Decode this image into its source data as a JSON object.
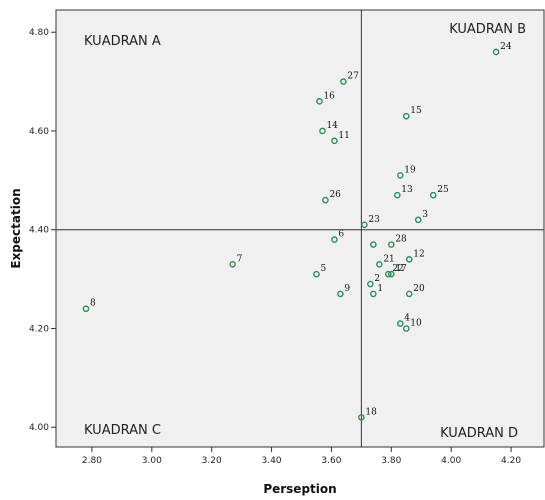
{
  "chart_data": {
    "type": "scatter",
    "title": "",
    "xlabel": "Perseption",
    "ylabel": "Expectation",
    "xlim": [
      2.68,
      4.31
    ],
    "ylim": [
      3.96,
      4.845
    ],
    "x_ticks": [
      "2.80",
      "3.00",
      "3.20",
      "3.40",
      "3.60",
      "3.80",
      "4.00",
      "4.20"
    ],
    "y_ticks": [
      "4.00",
      "4.20",
      "4.40",
      "4.60",
      "4.80"
    ],
    "x_tick_values": [
      2.8,
      3.0,
      3.2,
      3.4,
      3.6,
      3.8,
      4.0,
      4.2
    ],
    "y_tick_values": [
      4.0,
      4.2,
      4.4,
      4.6,
      4.8
    ],
    "reference_lines": {
      "x": 3.7,
      "y": 4.4
    },
    "quadrant_labels": {
      "A": "KUADRAN A",
      "B": "KUADRAN B",
      "C": "KUADRAN C",
      "D": "KUADRAN D"
    },
    "marker_color": "#2e8b57",
    "grid": false,
    "points": [
      {
        "label": "1",
        "x": 3.74,
        "y": 4.27
      },
      {
        "label": "2",
        "x": 3.73,
        "y": 4.29
      },
      {
        "label": "3",
        "x": 3.89,
        "y": 4.42
      },
      {
        "label": "4",
        "x": 3.83,
        "y": 4.21
      },
      {
        "label": "5",
        "x": 3.55,
        "y": 4.31
      },
      {
        "label": "6",
        "x": 3.61,
        "y": 4.38
      },
      {
        "label": "7",
        "x": 3.27,
        "y": 4.33
      },
      {
        "label": "8",
        "x": 2.78,
        "y": 4.24
      },
      {
        "label": "9",
        "x": 3.63,
        "y": 4.27
      },
      {
        "label": "10",
        "x": 3.85,
        "y": 4.2
      },
      {
        "label": "11",
        "x": 3.61,
        "y": 4.58
      },
      {
        "label": "12",
        "x": 3.86,
        "y": 4.34
      },
      {
        "label": "13",
        "x": 3.82,
        "y": 4.47
      },
      {
        "label": "14",
        "x": 3.57,
        "y": 4.6
      },
      {
        "label": "15",
        "x": 3.85,
        "y": 4.63
      },
      {
        "label": "16",
        "x": 3.56,
        "y": 4.66
      },
      {
        "label": "17",
        "x": 3.8,
        "y": 4.31
      },
      {
        "label": "18",
        "x": 3.7,
        "y": 4.02
      },
      {
        "label": "19",
        "x": 3.83,
        "y": 4.51
      },
      {
        "label": "20",
        "x": 3.86,
        "y": 4.27
      },
      {
        "label": "21",
        "x": 3.76,
        "y": 4.33
      },
      {
        "label": "22",
        "x": 3.79,
        "y": 4.31
      },
      {
        "label": "23",
        "x": 3.71,
        "y": 4.41
      },
      {
        "label": "24",
        "x": 4.15,
        "y": 4.76
      },
      {
        "label": "25",
        "x": 3.94,
        "y": 4.47
      },
      {
        "label": "26",
        "x": 3.58,
        "y": 4.46
      },
      {
        "label": "27",
        "x": 3.64,
        "y": 4.7
      },
      {
        "label": "28",
        "x": 3.8,
        "y": 4.37
      },
      {
        "label": "",
        "x": 3.74,
        "y": 4.37
      }
    ]
  }
}
